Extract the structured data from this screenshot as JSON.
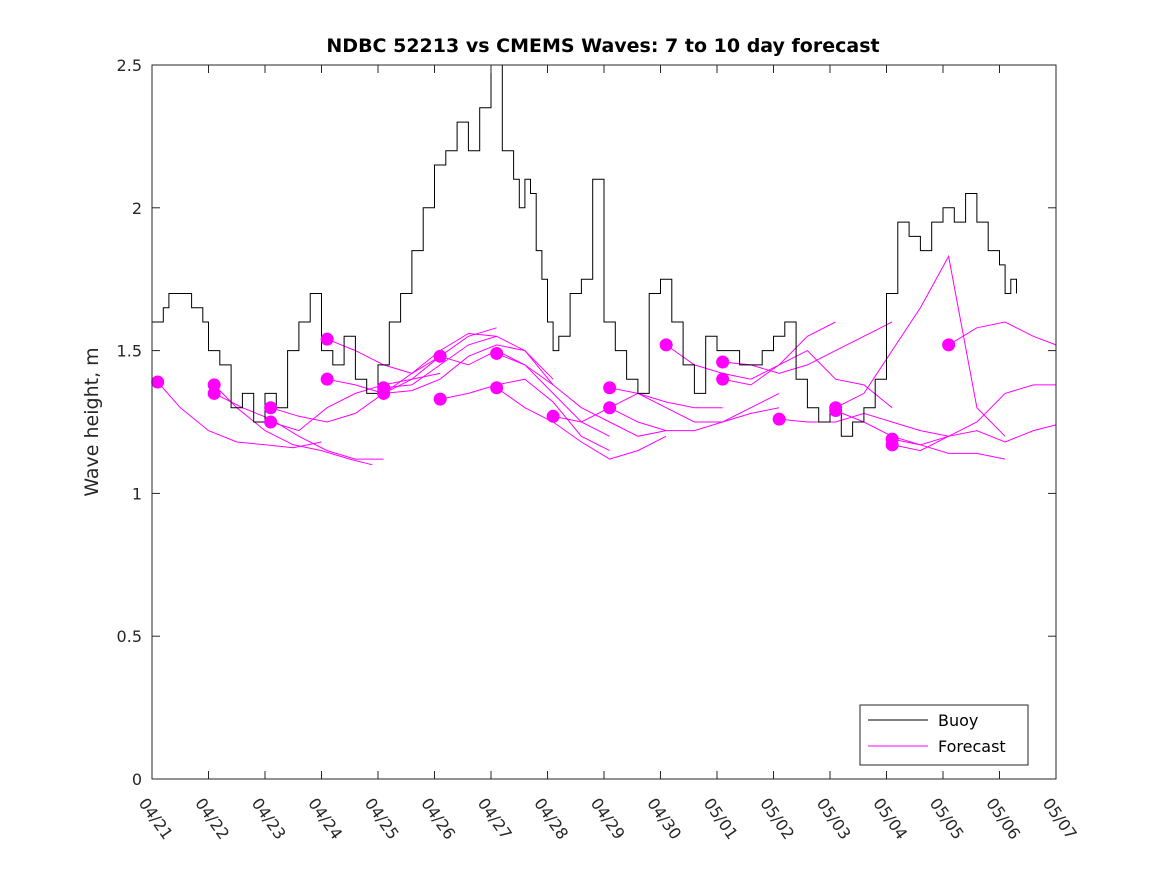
{
  "chart_data": {
    "type": "line",
    "title": "NDBC 52213 vs CMEMS Waves: 7 to 10 day forecast",
    "xlabel": "",
    "ylabel": "Wave height, m",
    "xlim": [
      0,
      16
    ],
    "ylim": [
      0,
      2.5
    ],
    "x_tick_labels": [
      "04/21",
      "04/22",
      "04/23",
      "04/24",
      "04/25",
      "04/26",
      "04/27",
      "04/28",
      "04/29",
      "04/30",
      "05/01",
      "05/02",
      "05/03",
      "05/04",
      "05/05",
      "05/06",
      "05/07"
    ],
    "y_tick_labels": [
      "0",
      "0.5",
      "1",
      "1.5",
      "2",
      "2.5"
    ],
    "grid": false,
    "legend_position": "bottom-right",
    "series": [
      {
        "name": "Buoy",
        "color": "#000000",
        "x": [
          0.0,
          0.1,
          0.2,
          0.3,
          0.5,
          0.7,
          0.9,
          1.0,
          1.2,
          1.4,
          1.6,
          1.8,
          2.0,
          2.2,
          2.4,
          2.6,
          2.8,
          3.0,
          3.2,
          3.4,
          3.6,
          3.8,
          4.0,
          4.2,
          4.4,
          4.6,
          4.8,
          5.0,
          5.2,
          5.4,
          5.6,
          5.8,
          6.0,
          6.2,
          6.4,
          6.5,
          6.6,
          6.7,
          6.8,
          6.9,
          7.0,
          7.1,
          7.2,
          7.4,
          7.6,
          7.8,
          8.0,
          8.2,
          8.4,
          8.6,
          8.8,
          9.0,
          9.2,
          9.4,
          9.6,
          9.8,
          10.0,
          10.2,
          10.4,
          10.6,
          10.8,
          11.0,
          11.2,
          11.4,
          11.6,
          11.8,
          12.0,
          12.2,
          12.4,
          12.6,
          12.8,
          13.0,
          13.2,
          13.4,
          13.6,
          13.8,
          14.0,
          14.2,
          14.4,
          14.6,
          14.8,
          15.0,
          15.1,
          15.2,
          15.3
        ],
        "y": [
          1.6,
          1.6,
          1.65,
          1.7,
          1.7,
          1.65,
          1.6,
          1.5,
          1.45,
          1.3,
          1.35,
          1.25,
          1.35,
          1.3,
          1.5,
          1.6,
          1.7,
          1.5,
          1.45,
          1.55,
          1.4,
          1.35,
          1.45,
          1.6,
          1.7,
          1.85,
          2.0,
          2.15,
          2.2,
          2.3,
          2.2,
          2.35,
          2.5,
          2.2,
          2.1,
          2.0,
          2.1,
          2.05,
          1.85,
          1.75,
          1.6,
          1.5,
          1.55,
          1.7,
          1.75,
          2.1,
          1.6,
          1.5,
          1.4,
          1.35,
          1.7,
          1.75,
          1.6,
          1.45,
          1.35,
          1.55,
          1.5,
          1.5,
          1.45,
          1.45,
          1.5,
          1.55,
          1.6,
          1.4,
          1.3,
          1.25,
          1.3,
          1.2,
          1.25,
          1.3,
          1.4,
          1.7,
          1.95,
          1.9,
          1.85,
          1.95,
          2.0,
          1.95,
          2.05,
          1.95,
          1.85,
          1.8,
          1.7,
          1.75,
          1.7
        ]
      },
      {
        "name": "Forecast",
        "color": "#ff00ff",
        "segments": [
          {
            "x": [
              0.1,
              0.5,
              1.0,
              1.5,
              2.0,
              2.5,
              3.0
            ],
            "y": [
              1.39,
              1.3,
              1.22,
              1.18,
              1.17,
              1.16,
              1.18
            ]
          },
          {
            "x": [
              1.1,
              1.5,
              2.0,
              2.5,
              3.0,
              3.5,
              3.9
            ],
            "y": [
              1.38,
              1.3,
              1.22,
              1.17,
              1.15,
              1.12,
              1.1
            ]
          },
          {
            "x": [
              1.1,
              1.6,
              2.1,
              2.6,
              3.1,
              3.6,
              4.1
            ],
            "y": [
              1.35,
              1.3,
              1.26,
              1.2,
              1.15,
              1.12,
              1.12
            ]
          },
          {
            "x": [
              2.1,
              2.6,
              3.1,
              3.6,
              4.1,
              4.6,
              5.1
            ],
            "y": [
              1.3,
              1.27,
              1.25,
              1.28,
              1.35,
              1.4,
              1.42
            ]
          },
          {
            "x": [
              2.1,
              2.6,
              3.1,
              3.6,
              4.1,
              4.6,
              5.1
            ],
            "y": [
              1.25,
              1.22,
              1.3,
              1.35,
              1.38,
              1.4,
              1.48
            ]
          },
          {
            "x": [
              3.1,
              3.6,
              4.1,
              4.6,
              5.1,
              5.6,
              6.1
            ],
            "y": [
              1.54,
              1.5,
              1.45,
              1.42,
              1.48,
              1.55,
              1.58
            ]
          },
          {
            "x": [
              3.1,
              3.6,
              4.1,
              4.6,
              5.1,
              5.6,
              6.1
            ],
            "y": [
              1.4,
              1.38,
              1.35,
              1.42,
              1.5,
              1.56,
              1.55
            ]
          },
          {
            "x": [
              4.1,
              4.6,
              5.1,
              5.6,
              6.1,
              6.6,
              7.1
            ],
            "y": [
              1.37,
              1.38,
              1.45,
              1.52,
              1.55,
              1.5,
              1.4
            ]
          },
          {
            "x": [
              4.1,
              4.6,
              5.1,
              5.6,
              6.1,
              6.6,
              7.1
            ],
            "y": [
              1.35,
              1.36,
              1.4,
              1.48,
              1.52,
              1.5,
              1.38
            ]
          },
          {
            "x": [
              5.1,
              5.6,
              6.1,
              6.6,
              7.1,
              7.6,
              8.1
            ],
            "y": [
              1.48,
              1.45,
              1.5,
              1.45,
              1.35,
              1.25,
              1.2
            ]
          },
          {
            "x": [
              5.1,
              5.6,
              6.1,
              6.6,
              7.1,
              7.6,
              8.1
            ],
            "y": [
              1.33,
              1.35,
              1.38,
              1.4,
              1.32,
              1.2,
              1.15
            ]
          },
          {
            "x": [
              6.1,
              6.6,
              7.1,
              7.6,
              8.1,
              8.6,
              9.1
            ],
            "y": [
              1.49,
              1.45,
              1.38,
              1.3,
              1.25,
              1.2,
              1.22
            ]
          },
          {
            "x": [
              6.1,
              6.6,
              7.1,
              7.6,
              8.1,
              8.6,
              9.1
            ],
            "y": [
              1.37,
              1.3,
              1.25,
              1.18,
              1.12,
              1.15,
              1.2
            ]
          },
          {
            "x": [
              7.1,
              7.6,
              8.1,
              8.6,
              9.1,
              9.6,
              10.1
            ],
            "y": [
              1.27,
              1.25,
              1.3,
              1.35,
              1.32,
              1.3,
              1.3
            ]
          },
          {
            "x": [
              8.1,
              8.6,
              9.1,
              9.6,
              10.1,
              10.6,
              11.1
            ],
            "y": [
              1.37,
              1.35,
              1.3,
              1.25,
              1.25,
              1.3,
              1.35
            ]
          },
          {
            "x": [
              8.1,
              8.6,
              9.1,
              9.6,
              10.1,
              10.6,
              11.1
            ],
            "y": [
              1.3,
              1.25,
              1.22,
              1.22,
              1.25,
              1.28,
              1.3
            ]
          },
          {
            "x": [
              9.1,
              9.6,
              10.1,
              10.6,
              11.1,
              11.6,
              12.1
            ],
            "y": [
              1.52,
              1.45,
              1.42,
              1.4,
              1.45,
              1.55,
              1.6
            ]
          },
          {
            "x": [
              10.1,
              10.6,
              11.1,
              11.6,
              12.1,
              12.6,
              13.1
            ],
            "y": [
              1.46,
              1.45,
              1.42,
              1.45,
              1.5,
              1.55,
              1.6
            ]
          },
          {
            "x": [
              10.1,
              10.6,
              11.1,
              11.6,
              12.1,
              12.6,
              13.1
            ],
            "y": [
              1.4,
              1.38,
              1.45,
              1.5,
              1.4,
              1.38,
              1.3
            ]
          },
          {
            "x": [
              11.1,
              11.6,
              12.1,
              12.6,
              13.1,
              13.6,
              14.1
            ],
            "y": [
              1.26,
              1.25,
              1.25,
              1.28,
              1.25,
              1.22,
              1.2
            ]
          },
          {
            "x": [
              12.1,
              12.6,
              13.1,
              13.6,
              14.1,
              14.6,
              15.1
            ],
            "y": [
              1.3,
              1.35,
              1.5,
              1.65,
              1.83,
              1.3,
              1.2
            ]
          },
          {
            "x": [
              12.1,
              12.6,
              13.1,
              13.6,
              14.1,
              14.6,
              15.1
            ],
            "y": [
              1.29,
              1.25,
              1.2,
              1.17,
              1.14,
              1.14,
              1.12
            ]
          },
          {
            "x": [
              13.1,
              13.6,
              14.1,
              14.6,
              15.1,
              15.6,
              16.0
            ],
            "y": [
              1.19,
              1.17,
              1.2,
              1.25,
              1.35,
              1.38,
              1.38
            ]
          },
          {
            "x": [
              13.1,
              13.6,
              14.1,
              14.6,
              15.1,
              15.6,
              16.0
            ],
            "y": [
              1.17,
              1.15,
              1.2,
              1.22,
              1.18,
              1.22,
              1.24
            ]
          },
          {
            "x": [
              14.1,
              14.6,
              15.1,
              15.6,
              16.0
            ],
            "y": [
              1.52,
              1.58,
              1.6,
              1.55,
              1.52
            ]
          }
        ],
        "markers": {
          "x": [
            0.1,
            1.1,
            1.1,
            2.1,
            2.1,
            3.1,
            3.1,
            4.1,
            4.1,
            5.1,
            5.1,
            6.1,
            6.1,
            7.1,
            8.1,
            8.1,
            9.1,
            10.1,
            10.1,
            11.1,
            12.1,
            12.1,
            13.1,
            13.1,
            14.1
          ],
          "y": [
            1.39,
            1.38,
            1.35,
            1.3,
            1.25,
            1.54,
            1.4,
            1.37,
            1.35,
            1.48,
            1.33,
            1.49,
            1.37,
            1.27,
            1.37,
            1.3,
            1.52,
            1.46,
            1.4,
            1.26,
            1.3,
            1.29,
            1.19,
            1.17,
            1.52
          ]
        }
      }
    ]
  }
}
